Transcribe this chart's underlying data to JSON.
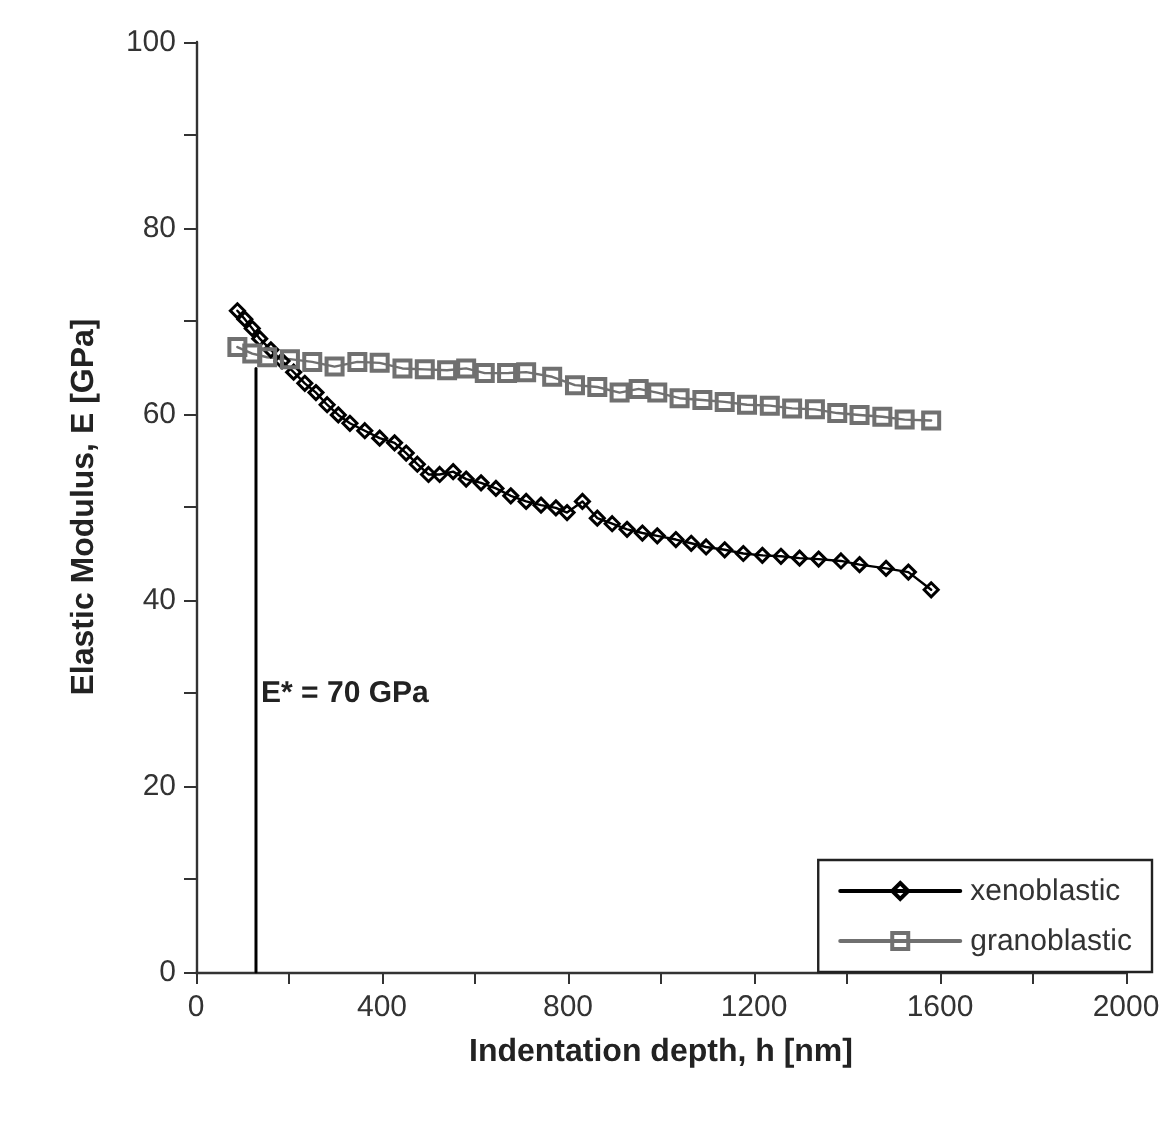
{
  "chart_data": {
    "type": "line",
    "xlabel": "Indentation depth, h [nm]",
    "ylabel": "Elastic Modulus, E [GPa]",
    "xlim": [
      0,
      2000
    ],
    "xticks": [
      0,
      {
        "value": 200,
        "label": null
      },
      400,
      {
        "value": 600,
        "label": null
      },
      800,
      {
        "value": 1000,
        "label": null
      },
      1200,
      {
        "value": 1400,
        "label": null
      },
      1600,
      {
        "value": 1800,
        "label": null
      },
      2000
    ],
    "ylim": [
      0,
      100
    ],
    "yticks": [
      0,
      {
        "value": 10,
        "label": null
      },
      20,
      {
        "value": 30,
        "label": null
      },
      40,
      {
        "value": 50,
        "label": null
      },
      60,
      {
        "value": 70,
        "label": null
      },
      80,
      {
        "value": 90,
        "label": null
      },
      100
    ],
    "grid": false,
    "legend": "bottom right",
    "line_style": "solid",
    "annotations": [
      {
        "text": "E* = 70 GPa",
        "x": 140,
        "y": 30
      }
    ],
    "series": [
      {
        "color": "#000000",
        "marker": "none",
        "x": [
          129,
          129
        ],
        "values": [
          0,
          64.9
        ]
      },
      {
        "name": "xenoblastic",
        "color": "#000000",
        "marker": "diamond",
        "x": [
          89,
          105,
          121,
          137,
          161,
          185,
          210,
          234,
          258,
          282,
          306,
          331,
          363,
          395,
          427,
          452,
          476,
          500,
          524,
          553,
          581,
          613,
          645,
          677,
          710,
          742,
          774,
          798,
          831,
          863,
          895,
          927,
          960,
          992,
          1032,
          1065,
          1097,
          1137,
          1177,
          1218,
          1258,
          1298,
          1339,
          1387,
          1427,
          1484,
          1532,
          1581
        ],
        "values": [
          71.1,
          70.2,
          69.2,
          68.1,
          66.9,
          65.7,
          64.5,
          63.3,
          62.3,
          61.0,
          59.9,
          59.0,
          58.2,
          57.4,
          56.9,
          55.8,
          54.6,
          53.5,
          53.5,
          53.8,
          53.0,
          52.6,
          52.0,
          51.2,
          50.6,
          50.2,
          49.9,
          49.4,
          50.6,
          48.8,
          48.2,
          47.6,
          47.2,
          46.9,
          46.5,
          46.1,
          45.7,
          45.4,
          45.0,
          44.8,
          44.7,
          44.5,
          44.4,
          44.2,
          43.8,
          43.4,
          43.0,
          41.1
        ]
      },
      {
        "name": "granoblastic",
        "color": "#707070",
        "marker": "square",
        "x": [
          89,
          121,
          153,
          202,
          250,
          298,
          347,
          395,
          444,
          492,
          540,
          581,
          621,
          669,
          710,
          766,
          815,
          863,
          911,
          952,
          992,
          1040,
          1089,
          1137,
          1185,
          1234,
          1282,
          1331,
          1379,
          1427,
          1476,
          1524,
          1581
        ],
        "values": [
          67.2,
          66.5,
          66.1,
          65.9,
          65.6,
          65.1,
          65.6,
          65.5,
          64.9,
          64.8,
          64.7,
          64.9,
          64.4,
          64.4,
          64.5,
          64.0,
          63.1,
          62.9,
          62.3,
          62.7,
          62.3,
          61.7,
          61.5,
          61.3,
          61.0,
          60.9,
          60.6,
          60.5,
          60.1,
          59.9,
          59.7,
          59.4,
          59.3
        ]
      }
    ]
  }
}
